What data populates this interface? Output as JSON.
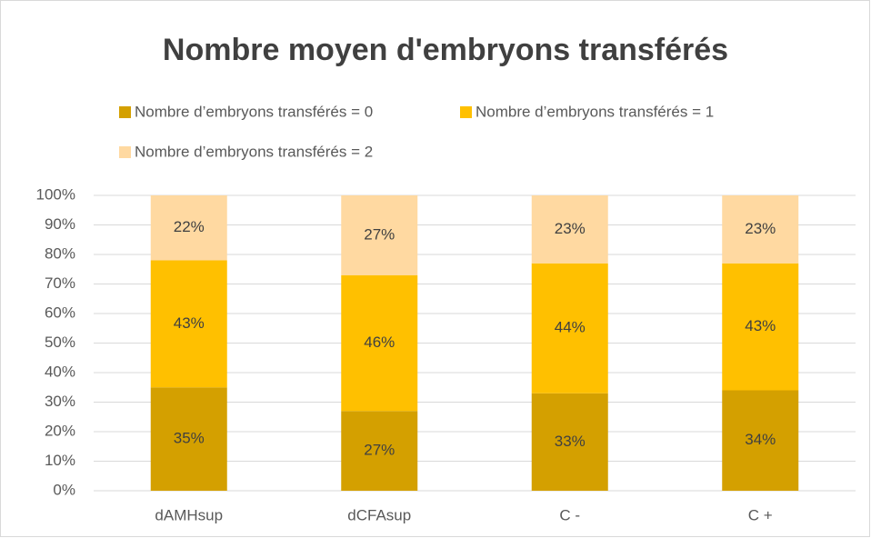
{
  "chart_data": {
    "type": "stacked_bar",
    "title": "Nombre moyen d'embryons transférés",
    "categories": [
      "dAMHsup",
      "dCFAsup",
      "C -",
      "C +"
    ],
    "series": [
      {
        "name": "Nombre d’embryons transférés = 0",
        "color": "#d4a000",
        "values": [
          35,
          27,
          33,
          34
        ],
        "value_labels": [
          "35%",
          "27%",
          "33%",
          "34%"
        ]
      },
      {
        "name": "Nombre d’embryons transférés = 1",
        "color": "#ffc000",
        "values": [
          43,
          46,
          44,
          43
        ],
        "value_labels": [
          "43%",
          "46%",
          "44%",
          "43%"
        ]
      },
      {
        "name": "Nombre d’embryons transférés = 2",
        "color": "#ffd9a1",
        "values": [
          22,
          27,
          23,
          23
        ],
        "value_labels": [
          "22%",
          "27%",
          "23%",
          "23%"
        ]
      }
    ],
    "ylim": [
      0,
      100
    ],
    "yticks": [
      {
        "value": 0,
        "label": "0%"
      },
      {
        "value": 10,
        "label": "10%"
      },
      {
        "value": 20,
        "label": "20%"
      },
      {
        "value": 30,
        "label": "30%"
      },
      {
        "value": 40,
        "label": "40%"
      },
      {
        "value": 50,
        "label": "50%"
      },
      {
        "value": 60,
        "label": "60%"
      },
      {
        "value": 70,
        "label": "70%"
      },
      {
        "value": 80,
        "label": "80%"
      },
      {
        "value": 90,
        "label": "90%"
      },
      {
        "value": 100,
        "label": "100%"
      }
    ],
    "grid": true,
    "legend": "top"
  }
}
